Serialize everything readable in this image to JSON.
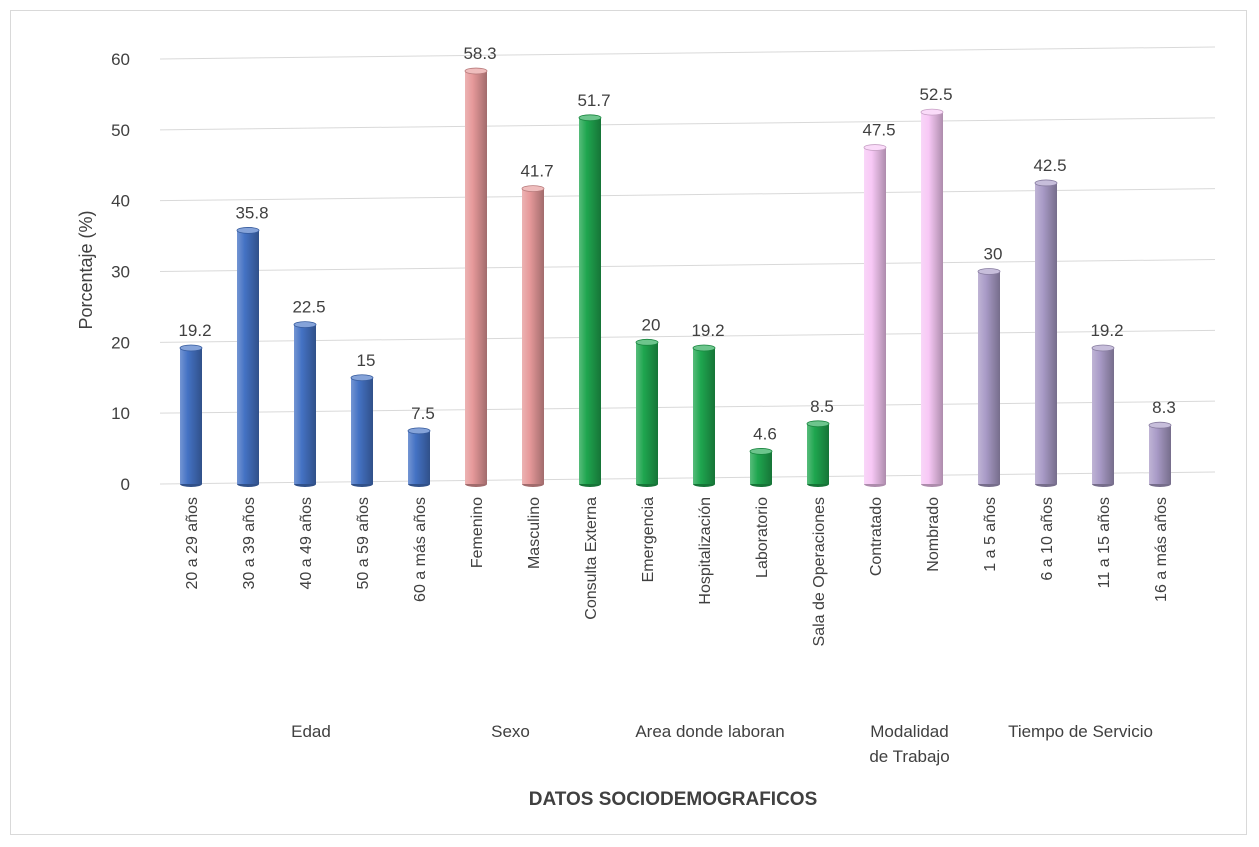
{
  "chart_data": {
    "type": "bar",
    "ylabel": "Porcentaje (%)",
    "xlabel": "DATOS SOCIODEMOGRAFICOS",
    "ylim": [
      0,
      60
    ],
    "yticks": [
      0,
      10,
      20,
      30,
      40,
      50,
      60
    ],
    "grid": true,
    "legend": "none",
    "groups": [
      {
        "name": "Edad",
        "color": "#4472c4",
        "categories": [
          "20 a 29 años",
          "30 a 39 años",
          "40 a 49 años",
          "50 a 59 años",
          "60 a más años"
        ],
        "values": [
          19.2,
          35.8,
          22.5,
          15,
          7.5
        ]
      },
      {
        "name": "Sexo",
        "color": "#e6999a",
        "categories": [
          "Femenino",
          "Masculino"
        ],
        "values": [
          58.3,
          41.7
        ]
      },
      {
        "name": "Area donde laboran",
        "color": "#1fa64f",
        "categories": [
          "Consulta Externa",
          "Emergencia",
          "Hospitalización",
          "Laboratorio",
          "Sala de Operaciones"
        ],
        "values": [
          51.7,
          20,
          19.2,
          4.6,
          8.5
        ]
      },
      {
        "name": "Modalidad de Trabajo",
        "name_lines": [
          "Modalidad",
          "de Trabajo"
        ],
        "color": "#f7c8f5",
        "categories": [
          "Contratado",
          "Nombrado"
        ],
        "values": [
          47.5,
          52.5
        ]
      },
      {
        "name": "Tiempo de Servicio",
        "color": "#a99bc7",
        "categories": [
          "1 a 5 años",
          "6 a 10 años",
          "11 a 15 años",
          "16 a más años"
        ],
        "values": [
          30,
          42.5,
          19.2,
          8.3
        ]
      }
    ]
  }
}
